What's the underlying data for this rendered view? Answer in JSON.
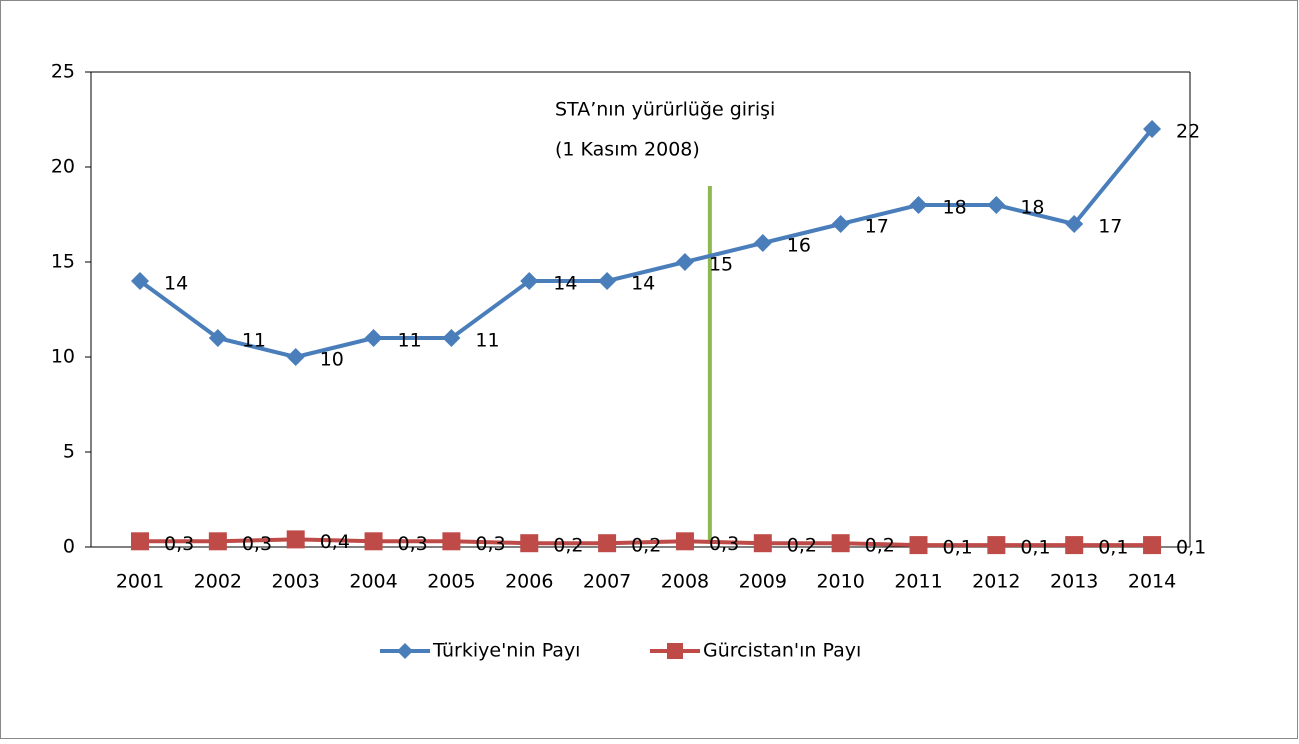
{
  "chart_data": {
    "type": "line",
    "annotation": [
      "STA’nın yürürlüğe girişi",
      "(1 Kasım 2008)"
    ],
    "categories": [
      "2001",
      "2002",
      "2003",
      "2004",
      "2005",
      "2006",
      "2007",
      "2008",
      "2009",
      "2010",
      "2011",
      "2012",
      "2013",
      "2014"
    ],
    "series": [
      {
        "name": "Türkiye'nin Payı",
        "color": "#4a7ebb",
        "marker": "diamond",
        "values": [
          14,
          11,
          10,
          11,
          11,
          14,
          14,
          15,
          16,
          17,
          18,
          18,
          17,
          22
        ]
      },
      {
        "name": "Gürcistan'ın Payı",
        "color": "#be4b48",
        "marker": "square",
        "values": [
          0.3,
          0.3,
          0.4,
          0.3,
          0.3,
          0.2,
          0.2,
          0.3,
          0.2,
          0.2,
          0.1,
          0.1,
          0.1,
          0.1
        ],
        "value_labels": [
          "0,3",
          "0,3",
          "0,4",
          "0,3",
          "0,3",
          "0,2",
          "0,2",
          "0,3",
          "0,2",
          "0,2",
          "0,1",
          "0,1",
          "0,1",
          "0,1"
        ]
      }
    ],
    "ylim": [
      0,
      25
    ],
    "yticks": [
      0,
      5,
      10,
      15,
      20,
      25
    ],
    "legend": "bottom",
    "event_color": "#8db852"
  }
}
